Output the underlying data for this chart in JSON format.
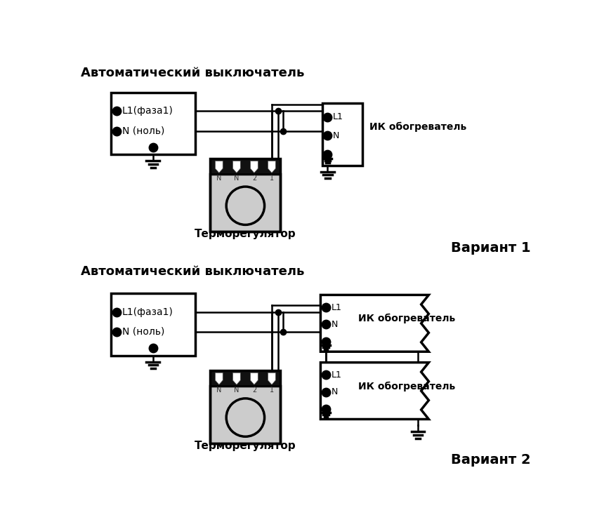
{
  "bg_color": "#ffffff",
  "line_color": "#000000",
  "title1": "Автоматический выключатель",
  "title2": "Автоматический выключатель",
  "label_thermo1": "Терморегулятор",
  "label_thermo2": "Терморегулятор",
  "label_variant1": "Вариант 1",
  "label_variant2": "Вариант 2",
  "label_ik1": "ИК обогреватель",
  "label_ik2_1": "ИК обогреватель",
  "label_ik2_2": "ИК обогреватель",
  "label_l1_fase": "L1(фаза1)",
  "label_n_nol": "N (ноль)",
  "label_L1": "L1",
  "label_N": "N",
  "term_labels": [
    "N",
    "N",
    "2",
    "1"
  ],
  "font_size_title": 13,
  "font_size_label": 10,
  "font_size_variant": 14
}
